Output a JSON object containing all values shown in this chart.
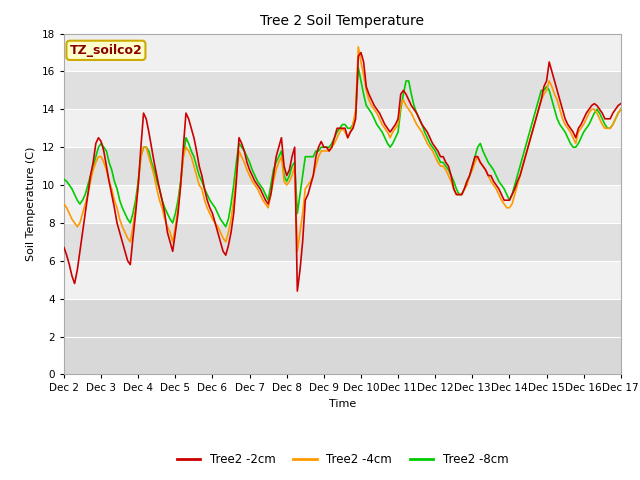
{
  "title": "Tree 2 Soil Temperature",
  "xlabel": "Time",
  "ylabel": "Soil Temperature (C)",
  "ylim": [
    0,
    18
  ],
  "yticks": [
    0,
    2,
    4,
    6,
    8,
    10,
    12,
    14,
    16,
    18
  ],
  "xtick_labels": [
    "Dec 2",
    "Dec 3",
    "Dec 4",
    "Dec 5",
    "Dec 6",
    "Dec 7",
    "Dec 8",
    "Dec 9",
    "Dec 10",
    "Dec 11",
    "Dec 12",
    "Dec 13",
    "Dec 14",
    "Dec 15",
    "Dec 16",
    "Dec 17"
  ],
  "annotation": "TZ_soilco2",
  "legend_labels": [
    "Tree2 -2cm",
    "Tree2 -4cm",
    "Tree2 -8cm"
  ],
  "line_colors": [
    "#cc0000",
    "#ff9900",
    "#00cc00"
  ],
  "linewidth": 1.2,
  "tree2_2cm": [
    6.7,
    6.3,
    5.8,
    5.2,
    4.8,
    5.5,
    6.5,
    7.5,
    8.5,
    9.5,
    10.5,
    11.2,
    12.2,
    12.5,
    12.3,
    11.8,
    11.0,
    10.2,
    9.5,
    8.8,
    8.0,
    7.5,
    7.0,
    6.5,
    6.0,
    5.8,
    7.2,
    8.5,
    10.0,
    12.0,
    13.8,
    13.5,
    12.8,
    12.0,
    11.2,
    10.5,
    9.8,
    9.2,
    8.5,
    7.5,
    7.0,
    6.5,
    7.5,
    8.5,
    10.0,
    12.0,
    13.8,
    13.5,
    13.0,
    12.5,
    11.8,
    11.0,
    10.5,
    9.8,
    9.2,
    8.8,
    8.5,
    8.0,
    7.5,
    7.0,
    6.5,
    6.3,
    6.8,
    7.5,
    8.5,
    10.2,
    12.5,
    12.2,
    11.8,
    11.2,
    10.8,
    10.5,
    10.2,
    10.0,
    9.8,
    9.5,
    9.2,
    9.0,
    9.5,
    10.5,
    11.5,
    12.0,
    12.5,
    11.0,
    10.5,
    10.8,
    11.5,
    12.0,
    4.4,
    5.5,
    7.0,
    9.2,
    9.5,
    10.0,
    10.5,
    11.5,
    12.0,
    12.3,
    12.0,
    12.0,
    11.8,
    12.0,
    12.5,
    13.0,
    13.0,
    13.0,
    13.0,
    12.5,
    12.8,
    13.0,
    13.5,
    16.8,
    17.0,
    16.5,
    15.2,
    14.8,
    14.5,
    14.2,
    14.0,
    13.8,
    13.5,
    13.2,
    13.0,
    12.8,
    13.0,
    13.2,
    13.5,
    14.8,
    15.0,
    14.8,
    14.5,
    14.2,
    14.0,
    13.8,
    13.5,
    13.2,
    13.0,
    12.8,
    12.5,
    12.2,
    12.0,
    11.8,
    11.5,
    11.5,
    11.2,
    11.0,
    10.5,
    9.8,
    9.5,
    9.5,
    9.5,
    9.8,
    10.2,
    10.5,
    11.0,
    11.5,
    11.5,
    11.2,
    11.0,
    10.8,
    10.5,
    10.5,
    10.2,
    10.0,
    9.8,
    9.5,
    9.2,
    9.2,
    9.2,
    9.5,
    9.8,
    10.2,
    10.5,
    11.0,
    11.5,
    12.0,
    12.5,
    13.0,
    13.5,
    14.0,
    14.5,
    15.2,
    15.5,
    16.5,
    16.0,
    15.5,
    15.0,
    14.5,
    14.0,
    13.5,
    13.2,
    13.0,
    12.8,
    12.5,
    13.0,
    13.2,
    13.5,
    13.8,
    14.0,
    14.2,
    14.3,
    14.2,
    14.0,
    13.8,
    13.5,
    13.5,
    13.5,
    13.8,
    14.0,
    14.2,
    14.3
  ],
  "tree2_4cm": [
    9.0,
    8.8,
    8.5,
    8.2,
    8.0,
    7.8,
    8.0,
    8.5,
    9.0,
    9.5,
    10.2,
    10.8,
    11.2,
    11.5,
    11.5,
    11.2,
    10.8,
    10.2,
    9.8,
    9.2,
    8.8,
    8.2,
    7.8,
    7.5,
    7.2,
    7.0,
    7.8,
    8.8,
    10.0,
    11.5,
    12.0,
    12.0,
    11.5,
    11.0,
    10.5,
    9.8,
    9.2,
    8.8,
    8.2,
    7.8,
    7.5,
    7.0,
    7.8,
    8.8,
    10.0,
    11.5,
    12.0,
    11.8,
    11.5,
    11.0,
    10.5,
    10.0,
    9.8,
    9.2,
    8.8,
    8.5,
    8.2,
    8.0,
    7.8,
    7.5,
    7.2,
    7.0,
    7.5,
    8.2,
    9.2,
    10.5,
    11.8,
    11.5,
    11.2,
    10.8,
    10.5,
    10.2,
    10.0,
    9.8,
    9.5,
    9.2,
    9.0,
    8.8,
    9.5,
    10.2,
    10.8,
    11.2,
    11.5,
    10.2,
    10.0,
    10.2,
    10.5,
    11.0,
    6.5,
    7.5,
    8.5,
    9.8,
    10.0,
    10.2,
    10.5,
    11.0,
    11.5,
    11.8,
    11.8,
    11.8,
    11.8,
    12.0,
    12.2,
    12.5,
    12.8,
    13.0,
    12.8,
    12.5,
    12.8,
    13.2,
    14.0,
    17.3,
    16.5,
    15.8,
    15.0,
    14.5,
    14.2,
    14.0,
    13.8,
    13.5,
    13.2,
    13.0,
    12.8,
    12.5,
    12.8,
    13.0,
    13.2,
    14.2,
    14.5,
    14.2,
    14.0,
    13.8,
    13.5,
    13.2,
    13.0,
    12.8,
    12.5,
    12.2,
    12.0,
    11.8,
    11.5,
    11.2,
    11.0,
    11.0,
    10.8,
    10.5,
    10.2,
    9.8,
    9.5,
    9.5,
    9.5,
    9.8,
    10.0,
    10.5,
    10.8,
    11.2,
    11.5,
    11.2,
    11.0,
    10.8,
    10.5,
    10.2,
    10.0,
    9.8,
    9.5,
    9.2,
    9.0,
    8.8,
    8.8,
    9.0,
    9.5,
    10.0,
    10.5,
    11.0,
    11.5,
    12.0,
    12.5,
    13.0,
    13.5,
    14.0,
    14.5,
    14.8,
    15.0,
    15.5,
    15.2,
    14.8,
    14.5,
    14.0,
    13.5,
    13.2,
    13.0,
    12.8,
    12.5,
    12.2,
    12.8,
    13.0,
    13.2,
    13.5,
    13.8,
    14.0,
    14.0,
    13.8,
    13.5,
    13.2,
    13.0,
    13.0,
    13.0,
    13.2,
    13.5,
    13.8,
    14.0
  ],
  "tree2_8cm": [
    10.3,
    10.2,
    10.0,
    9.8,
    9.5,
    9.2,
    9.0,
    9.2,
    9.5,
    10.0,
    10.5,
    11.0,
    11.5,
    12.0,
    12.2,
    12.0,
    11.8,
    11.2,
    10.8,
    10.2,
    9.8,
    9.2,
    8.8,
    8.5,
    8.2,
    8.0,
    8.5,
    9.2,
    10.2,
    11.5,
    12.0,
    12.0,
    11.8,
    11.2,
    10.8,
    10.2,
    9.8,
    9.2,
    8.8,
    8.5,
    8.2,
    8.0,
    8.5,
    9.2,
    10.2,
    11.5,
    12.5,
    12.2,
    11.8,
    11.5,
    11.0,
    10.5,
    10.2,
    9.8,
    9.5,
    9.2,
    9.0,
    8.8,
    8.5,
    8.2,
    8.0,
    7.8,
    8.2,
    9.0,
    10.0,
    11.2,
    12.2,
    12.0,
    11.8,
    11.5,
    11.2,
    10.8,
    10.5,
    10.2,
    10.0,
    9.8,
    9.5,
    9.2,
    10.0,
    10.8,
    11.2,
    11.5,
    11.8,
    10.5,
    10.2,
    10.5,
    11.0,
    11.2,
    8.5,
    9.5,
    10.5,
    11.5,
    11.5,
    11.5,
    11.5,
    11.8,
    11.8,
    12.0,
    12.0,
    12.0,
    12.0,
    12.2,
    12.5,
    12.8,
    13.0,
    13.2,
    13.2,
    13.0,
    13.0,
    13.2,
    13.8,
    16.2,
    15.5,
    14.8,
    14.2,
    14.0,
    13.8,
    13.5,
    13.2,
    13.0,
    12.8,
    12.5,
    12.2,
    12.0,
    12.2,
    12.5,
    12.8,
    14.0,
    14.8,
    15.5,
    15.5,
    14.8,
    14.2,
    13.8,
    13.5,
    13.2,
    12.8,
    12.5,
    12.2,
    12.0,
    11.8,
    11.5,
    11.2,
    11.2,
    11.0,
    10.8,
    10.5,
    10.2,
    9.8,
    9.5,
    9.5,
    9.8,
    10.2,
    10.5,
    11.0,
    11.5,
    12.0,
    12.2,
    11.8,
    11.5,
    11.2,
    11.0,
    10.8,
    10.5,
    10.2,
    10.0,
    9.8,
    9.5,
    9.2,
    9.5,
    10.0,
    10.5,
    11.0,
    11.5,
    12.0,
    12.5,
    13.0,
    13.5,
    14.0,
    14.5,
    15.0,
    15.0,
    15.2,
    15.0,
    14.5,
    14.0,
    13.5,
    13.2,
    13.0,
    12.8,
    12.5,
    12.2,
    12.0,
    12.0,
    12.2,
    12.5,
    12.8,
    13.0,
    13.2,
    13.5,
    13.8,
    14.0,
    13.8,
    13.5,
    13.2,
    13.0,
    13.0,
    13.2,
    13.5,
    13.8,
    14.0
  ]
}
